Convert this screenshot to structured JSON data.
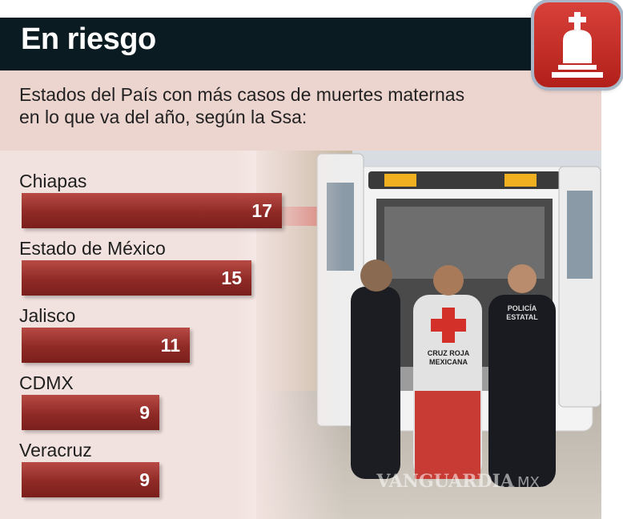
{
  "header": {
    "title": "En riesgo"
  },
  "subtitle": {
    "line1": "Estados del País con más casos de muertes maternas",
    "line2": "en lo que va del año, según la Ssa:"
  },
  "icon": {
    "name": "tombstone-icon",
    "color": "#c4302b"
  },
  "colors": {
    "bar": "#8f2a26",
    "header": "#0b1b22",
    "band": "#ecd4cf"
  },
  "photo": {
    "vest_line1": "CRUZ ROJA",
    "vest_line2": "MEXICANA",
    "police_line1": "POLICÍA",
    "police_line2": "ESTATAL",
    "watermark": "VANGUARDIA",
    "watermark_suffix": "MX"
  },
  "chart_data": {
    "type": "bar",
    "orientation": "horizontal",
    "title": "En riesgo",
    "subtitle": "Estados del País con más casos de muertes maternas en lo que va del año, según la Ssa:",
    "categories": [
      "Chiapas",
      "Estado de México",
      "Jalisco",
      "CDMX",
      "Veracruz"
    ],
    "values": [
      17,
      15,
      11,
      9,
      9
    ],
    "value_labels": [
      "17",
      "15",
      "11",
      "9",
      "9"
    ],
    "xlim": [
      0,
      17
    ],
    "grid": false,
    "legend": "none"
  }
}
